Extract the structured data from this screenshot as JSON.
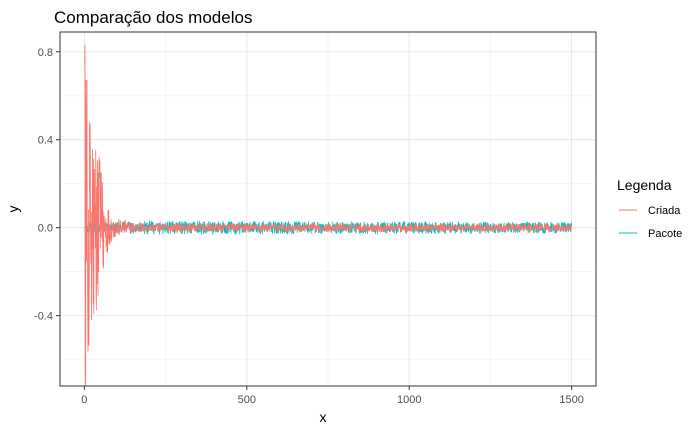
{
  "chart_data": {
    "type": "line",
    "title": "Comparação dos modelos",
    "xlabel": "x",
    "ylabel": "y",
    "xlim": [
      -75,
      1575
    ],
    "ylim": [
      -0.72,
      0.89
    ],
    "x_ticks": [
      0,
      500,
      1000,
      1500
    ],
    "x_tick_labels": [
      "0",
      "500",
      "1000",
      "1500"
    ],
    "y_ticks": [
      -0.4,
      0.0,
      0.4,
      0.8
    ],
    "y_tick_labels": [
      "-0.4",
      "0.0",
      "0.4",
      "0.8"
    ],
    "grid": true,
    "legend": {
      "title": "Legenda",
      "placement": "right"
    },
    "series": [
      {
        "name": "Criada",
        "color": "#F8766D",
        "n": 1500,
        "envelope": [
          {
            "x": 1,
            "amplitude": 0.83
          },
          {
            "x": 5,
            "amplitude": 0.8
          },
          {
            "x": 10,
            "amplitude": 0.6
          },
          {
            "x": 20,
            "amplitude": 0.48
          },
          {
            "x": 30,
            "amplitude": 0.4
          },
          {
            "x": 40,
            "amplitude": 0.4
          },
          {
            "x": 50,
            "amplitude": 0.28
          },
          {
            "x": 60,
            "amplitude": 0.2
          },
          {
            "x": 70,
            "amplitude": 0.12
          },
          {
            "x": 80,
            "amplitude": 0.07
          },
          {
            "x": 100,
            "amplitude": 0.04
          },
          {
            "x": 150,
            "amplitude": 0.025
          },
          {
            "x": 200,
            "amplitude": 0.02
          },
          {
            "x": 1500,
            "amplitude": 0.018
          }
        ]
      },
      {
        "name": "Pacote",
        "color": "#00BFC4",
        "n": 1500,
        "envelope": [
          {
            "x": 1,
            "amplitude": 0.02
          },
          {
            "x": 100,
            "amplitude": 0.025
          },
          {
            "x": 200,
            "amplitude": 0.03
          },
          {
            "x": 1500,
            "amplitude": 0.025
          }
        ]
      }
    ]
  }
}
